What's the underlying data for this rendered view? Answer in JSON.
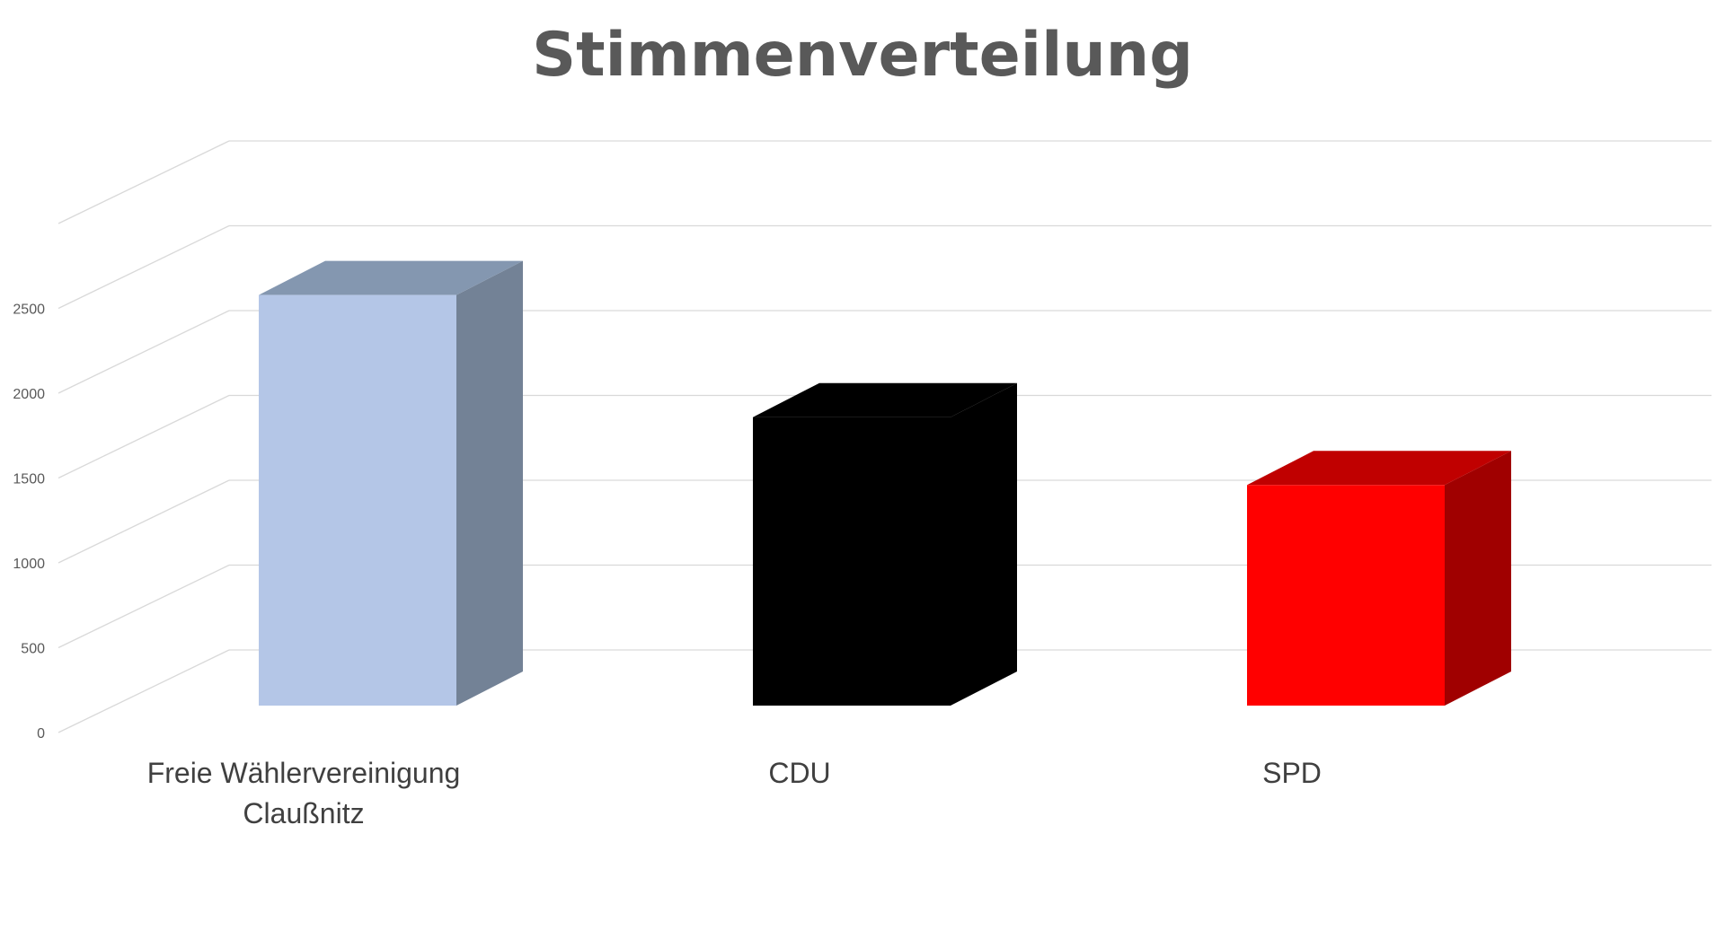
{
  "chart_data": {
    "type": "bar",
    "title": "Stimmenverteilung",
    "categories": [
      "Freie Wählervereinigung Claußnitz",
      "CDU",
      "SPD"
    ],
    "category_lines": [
      [
        "Freie Wählervereinigung",
        "Claußnitz"
      ],
      [
        "CDU"
      ],
      [
        "SPD"
      ]
    ],
    "values": [
      2420,
      1700,
      1300
    ],
    "colors": {
      "Freie Wählervereinigung Claußnitz": {
        "front": "#B4C6E7",
        "top": "#8497B0",
        "side": "#738296"
      },
      "CDU": {
        "front": "#000000",
        "top": "#000000",
        "side": "#000000"
      },
      "SPD": {
        "front": "#FF0000",
        "top": "#C00000",
        "side": "#A00000"
      }
    },
    "yticks": [
      "0",
      "500",
      "1000",
      "1500",
      "2000",
      "2500"
    ],
    "ylim": [
      0,
      3000
    ],
    "xlabel": "",
    "ylabel": "",
    "grid": true,
    "legend": "none",
    "style": "3d-column"
  }
}
